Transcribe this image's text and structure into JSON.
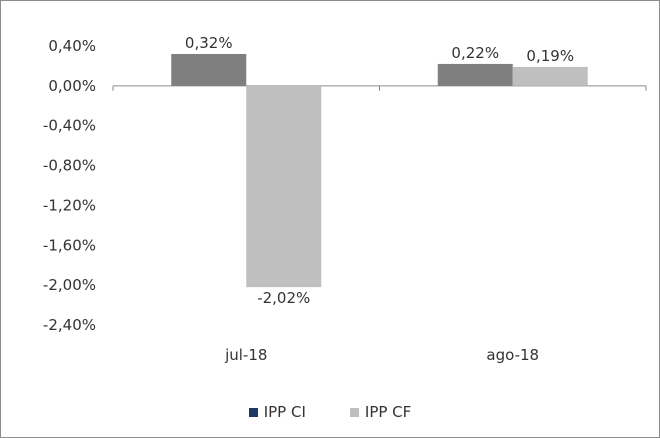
{
  "chart_data": {
    "type": "bar",
    "categories": [
      "jul-18",
      "ago-18"
    ],
    "series": [
      {
        "name": "IPP CI",
        "values": [
          0.32,
          0.22
        ],
        "labels": [
          "0,32%",
          "0,22%"
        ],
        "color": "#7f7f7f"
      },
      {
        "name": "IPP CF",
        "values": [
          -2.02,
          0.19
        ],
        "labels": [
          "-2,02%",
          "0,19%"
        ],
        "color": "#bfbfbf"
      }
    ],
    "ylim": [
      -2.4,
      0.4
    ],
    "yticks": [
      0.4,
      0.0,
      -0.4,
      -0.8,
      -1.2,
      -1.6,
      -2.0,
      -2.4
    ],
    "ytick_labels": [
      "0,40%",
      "0,00%",
      "-0,40%",
      "-0,80%",
      "-1,20%",
      "-1,60%",
      "-2,00%",
      "-2,40%"
    ],
    "legend_position": "bottom",
    "legend_colors": [
      "#1f3864",
      "#bfbfbf"
    ],
    "grid": false
  }
}
